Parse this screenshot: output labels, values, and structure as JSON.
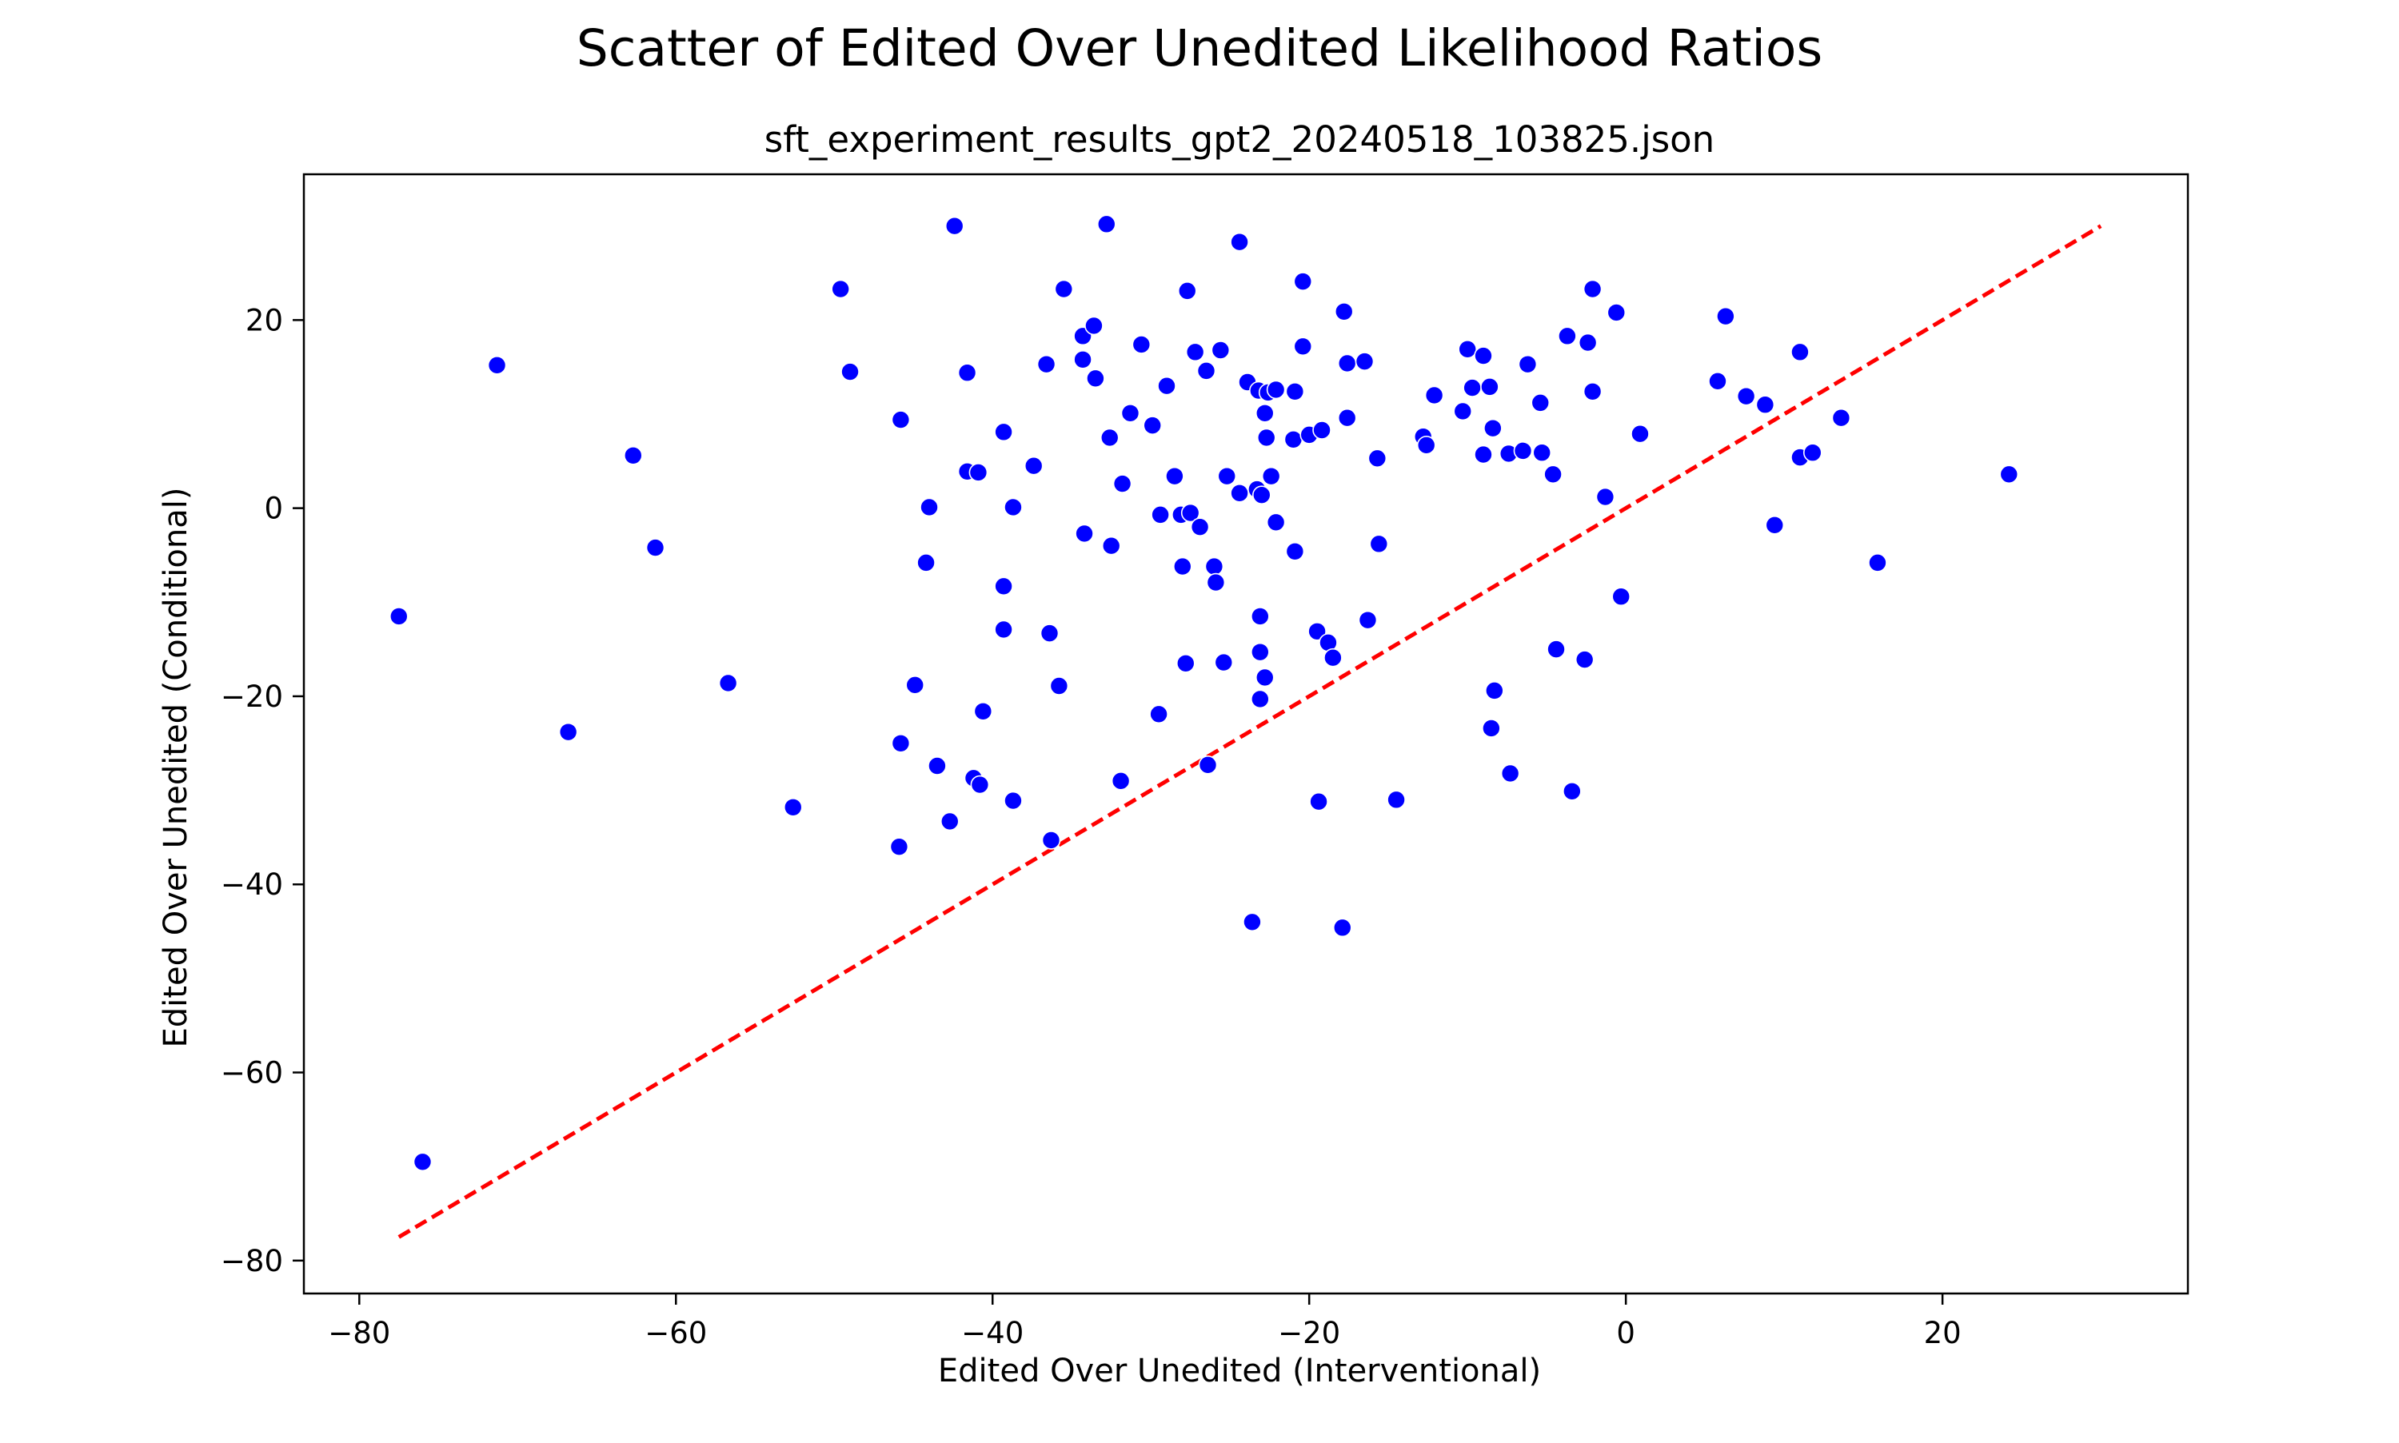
{
  "chart_data": {
    "type": "scatter",
    "title": "Scatter of Edited Over Unedited Likelihood Ratios",
    "subtitle": "sft_experiment_results_gpt2_20240518_103825.json",
    "xlabel": "Edited Over Unedited (Interventional)",
    "ylabel": "Edited Over Unedited (Conditional)",
    "xlim": [
      -83.5,
      35.5
    ],
    "ylim": [
      -83.5,
      35.5
    ],
    "xticks": [
      -80,
      -60,
      -40,
      -20,
      0,
      20
    ],
    "yticks": [
      -80,
      -60,
      -40,
      -20,
      0,
      20
    ],
    "xtick_labels": [
      "−80",
      "−60",
      "−40",
      "−20",
      "0",
      "20"
    ],
    "ytick_labels": [
      "−80",
      "−60",
      "−40",
      "−20",
      "0",
      "20"
    ],
    "grid": false,
    "marker_color": "#0000ff",
    "reference_line": {
      "style": "dashed",
      "color": "#ff0000",
      "x": [
        -77.5,
        30
      ],
      "y": [
        -77.5,
        30
      ]
    },
    "points": [
      {
        "x": -77.5,
        "y": -11.5
      },
      {
        "x": -76,
        "y": -69.5
      },
      {
        "x": -71.3,
        "y": 15.2
      },
      {
        "x": -66.8,
        "y": -23.8
      },
      {
        "x": -62.7,
        "y": 5.6
      },
      {
        "x": -61.3,
        "y": -4.2
      },
      {
        "x": -56.7,
        "y": -18.6
      },
      {
        "x": -52.6,
        "y": -31.8
      },
      {
        "x": -49.6,
        "y": 23.3
      },
      {
        "x": -49,
        "y": 14.5
      },
      {
        "x": -45.8,
        "y": 9.4
      },
      {
        "x": -45.8,
        "y": -25
      },
      {
        "x": -45.9,
        "y": -36
      },
      {
        "x": -44.9,
        "y": -18.8
      },
      {
        "x": -44.2,
        "y": -5.8
      },
      {
        "x": -44,
        "y": 0.1
      },
      {
        "x": -43.5,
        "y": -27.4
      },
      {
        "x": -42.7,
        "y": -33.3
      },
      {
        "x": -42.4,
        "y": 30
      },
      {
        "x": -41.6,
        "y": 14.4
      },
      {
        "x": -41.6,
        "y": 3.9
      },
      {
        "x": -41.2,
        "y": -28.7
      },
      {
        "x": -40.9,
        "y": 3.8
      },
      {
        "x": -40.8,
        "y": -29.4
      },
      {
        "x": -40.6,
        "y": -21.6
      },
      {
        "x": -39.3,
        "y": 8.1
      },
      {
        "x": -39.3,
        "y": -8.3
      },
      {
        "x": -39.3,
        "y": -12.9
      },
      {
        "x": -38.7,
        "y": 0.1
      },
      {
        "x": -38.7,
        "y": -31.1
      },
      {
        "x": -37.4,
        "y": 4.5
      },
      {
        "x": -36.6,
        "y": 15.3
      },
      {
        "x": -36.4,
        "y": -13.3
      },
      {
        "x": -36.3,
        "y": -35.3
      },
      {
        "x": -35.8,
        "y": -18.9
      },
      {
        "x": -35.5,
        "y": 23.3
      },
      {
        "x": -34.3,
        "y": 18.3
      },
      {
        "x": -34.3,
        "y": 15.8
      },
      {
        "x": -34.2,
        "y": -2.7
      },
      {
        "x": -33.6,
        "y": 19.4
      },
      {
        "x": -33.5,
        "y": 13.8
      },
      {
        "x": -32.8,
        "y": 30.2
      },
      {
        "x": -32.6,
        "y": 7.5
      },
      {
        "x": -32.5,
        "y": -4
      },
      {
        "x": -31.8,
        "y": 2.6
      },
      {
        "x": -31.9,
        "y": -29
      },
      {
        "x": -31.3,
        "y": 10.1
      },
      {
        "x": -30.6,
        "y": 17.4
      },
      {
        "x": -29.9,
        "y": 8.8
      },
      {
        "x": -29.5,
        "y": -21.9
      },
      {
        "x": -29.4,
        "y": -0.7
      },
      {
        "x": -29,
        "y": 13
      },
      {
        "x": -28.5,
        "y": 3.4
      },
      {
        "x": -28.1,
        "y": -0.7
      },
      {
        "x": -28,
        "y": -6.2
      },
      {
        "x": -27.8,
        "y": -16.5
      },
      {
        "x": -27.7,
        "y": 23.1
      },
      {
        "x": -27.5,
        "y": -0.5
      },
      {
        "x": -27.2,
        "y": 16.6
      },
      {
        "x": -26.9,
        "y": -2
      },
      {
        "x": -26.5,
        "y": 14.6
      },
      {
        "x": -26.4,
        "y": -27.3
      },
      {
        "x": -26,
        "y": -6.2
      },
      {
        "x": -25.9,
        "y": -7.9
      },
      {
        "x": -25.6,
        "y": 16.8
      },
      {
        "x": -25.4,
        "y": -16.4
      },
      {
        "x": -25.2,
        "y": 3.4
      },
      {
        "x": -24.4,
        "y": 28.3
      },
      {
        "x": -24.4,
        "y": 1.6
      },
      {
        "x": -23.9,
        "y": 13.4
      },
      {
        "x": -23.6,
        "y": -44
      },
      {
        "x": -23.3,
        "y": 2
      },
      {
        "x": -23.2,
        "y": 12.5
      },
      {
        "x": -23.1,
        "y": -11.5
      },
      {
        "x": -23.1,
        "y": -15.3
      },
      {
        "x": -23.1,
        "y": -20.3
      },
      {
        "x": -23,
        "y": 1.4
      },
      {
        "x": -22.8,
        "y": -18
      },
      {
        "x": -22.8,
        "y": 10.1
      },
      {
        "x": -22.7,
        "y": 7.5
      },
      {
        "x": -22.6,
        "y": 12.3
      },
      {
        "x": -22.4,
        "y": 3.4
      },
      {
        "x": -22.1,
        "y": 12.6
      },
      {
        "x": -22.1,
        "y": -1.5
      },
      {
        "x": -21,
        "y": 7.3
      },
      {
        "x": -20.9,
        "y": 12.4
      },
      {
        "x": -20.9,
        "y": -4.6
      },
      {
        "x": -20.4,
        "y": 24.1
      },
      {
        "x": -20.4,
        "y": 17.2
      },
      {
        "x": -20,
        "y": 7.8
      },
      {
        "x": -19.5,
        "y": -13.1
      },
      {
        "x": -19.4,
        "y": -31.2
      },
      {
        "x": -19.2,
        "y": 8.3
      },
      {
        "x": -18.8,
        "y": -14.3
      },
      {
        "x": -18.5,
        "y": -15.9
      },
      {
        "x": -17.9,
        "y": -44.6
      },
      {
        "x": -17.8,
        "y": 20.9
      },
      {
        "x": -17.6,
        "y": 15.4
      },
      {
        "x": -17.6,
        "y": 9.6
      },
      {
        "x": -16.5,
        "y": 15.6
      },
      {
        "x": -16.3,
        "y": -11.9
      },
      {
        "x": -15.7,
        "y": 5.3
      },
      {
        "x": -15.6,
        "y": -3.8
      },
      {
        "x": -14.5,
        "y": -31
      },
      {
        "x": -12.8,
        "y": 7.6
      },
      {
        "x": -12.6,
        "y": 6.7
      },
      {
        "x": -12.1,
        "y": 12
      },
      {
        "x": -10.3,
        "y": 10.3
      },
      {
        "x": -10,
        "y": 16.9
      },
      {
        "x": -9.7,
        "y": 12.8
      },
      {
        "x": -9,
        "y": 16.2
      },
      {
        "x": -9,
        "y": 5.7
      },
      {
        "x": -8.6,
        "y": 12.9
      },
      {
        "x": -8.5,
        "y": -23.4
      },
      {
        "x": -8.4,
        "y": 8.5
      },
      {
        "x": -8.3,
        "y": -19.4
      },
      {
        "x": -7.4,
        "y": 5.8
      },
      {
        "x": -7.3,
        "y": -28.2
      },
      {
        "x": -6.5,
        "y": 6.1
      },
      {
        "x": -6.2,
        "y": 15.3
      },
      {
        "x": -5.4,
        "y": 11.2
      },
      {
        "x": -5.3,
        "y": 5.9
      },
      {
        "x": -4.6,
        "y": 3.6
      },
      {
        "x": -4.4,
        "y": -15
      },
      {
        "x": -3.7,
        "y": 18.3
      },
      {
        "x": -3.4,
        "y": -30.1
      },
      {
        "x": -2.6,
        "y": -16.1
      },
      {
        "x": -2.4,
        "y": 17.6
      },
      {
        "x": -2.1,
        "y": 23.3
      },
      {
        "x": -2.1,
        "y": 12.4
      },
      {
        "x": -1.3,
        "y": 1.2
      },
      {
        "x": -0.6,
        "y": 20.8
      },
      {
        "x": -0.3,
        "y": -9.4
      },
      {
        "x": 0.9,
        "y": 7.9
      },
      {
        "x": 5.8,
        "y": 13.5
      },
      {
        "x": 6.3,
        "y": 20.4
      },
      {
        "x": 7.6,
        "y": 11.9
      },
      {
        "x": 8.8,
        "y": 11
      },
      {
        "x": 9.4,
        "y": -1.8
      },
      {
        "x": 11,
        "y": 16.6
      },
      {
        "x": 11,
        "y": 5.4
      },
      {
        "x": 11.8,
        "y": 5.9
      },
      {
        "x": 13.6,
        "y": 9.6
      },
      {
        "x": 15.9,
        "y": -5.8
      },
      {
        "x": 24.2,
        "y": 3.6
      }
    ]
  }
}
